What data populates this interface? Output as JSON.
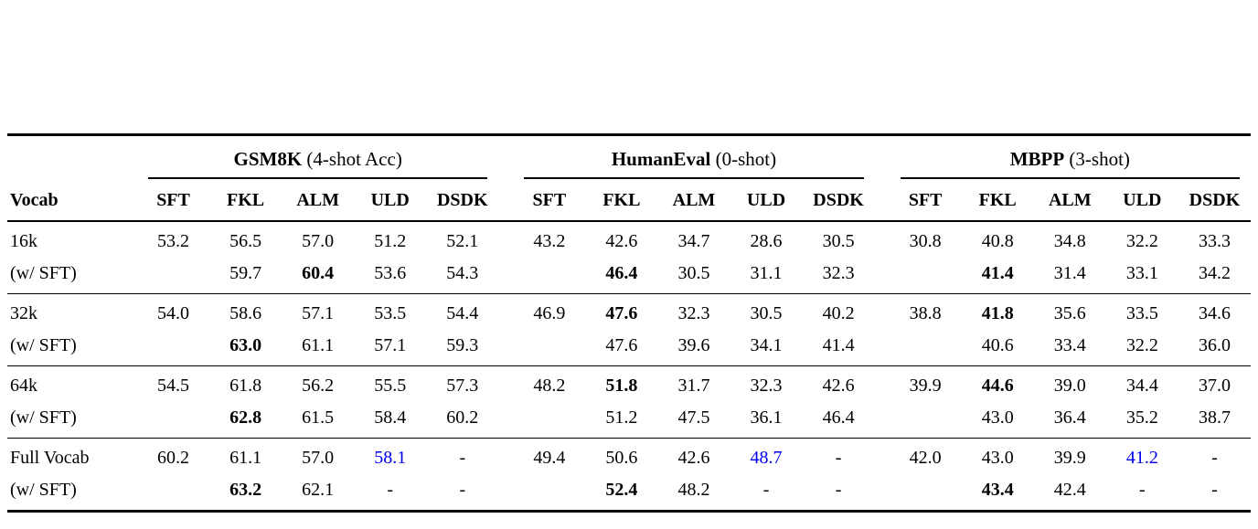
{
  "page": {
    "background": "#ffffff"
  },
  "colors": {
    "text": "#000000",
    "rule": "#000000",
    "highlight": "#0000EE"
  },
  "table": {
    "vocab_header": "Vocab",
    "groups": [
      {
        "name": "GSM8K",
        "detail": " (4-shot Acc)"
      },
      {
        "name": "HumanEval",
        "detail": " (0-shot)"
      },
      {
        "name": "MBPP",
        "detail": " (3-shot)"
      }
    ],
    "method_headers": [
      "SFT",
      "FKL",
      "ALM",
      "ULD",
      "DSDK"
    ],
    "row_groups": [
      {
        "rows": [
          {
            "label": "16k",
            "cells": [
              "53.2",
              "56.5",
              "57.0",
              "51.2",
              "52.1",
              "43.2",
              "42.6",
              "34.7",
              "28.6",
              "30.5",
              "30.8",
              "40.8",
              "34.8",
              "32.2",
              "33.3"
            ],
            "bold": [],
            "blue": []
          },
          {
            "label": "(w/ SFT)",
            "cells": [
              "",
              "59.7",
              "60.4",
              "53.6",
              "54.3",
              "",
              "46.4",
              "30.5",
              "31.1",
              "32.3",
              "",
              "41.4",
              "31.4",
              "33.1",
              "34.2"
            ],
            "bold": [
              2,
              6,
              11
            ],
            "blue": []
          }
        ]
      },
      {
        "rows": [
          {
            "label": "32k",
            "cells": [
              "54.0",
              "58.6",
              "57.1",
              "53.5",
              "54.4",
              "46.9",
              "47.6",
              "32.3",
              "30.5",
              "40.2",
              "38.8",
              "41.8",
              "35.6",
              "33.5",
              "34.6"
            ],
            "bold": [
              6,
              11
            ],
            "blue": []
          },
          {
            "label": "(w/ SFT)",
            "cells": [
              "",
              "63.0",
              "61.1",
              "57.1",
              "59.3",
              "",
              "47.6",
              "39.6",
              "34.1",
              "41.4",
              "",
              "40.6",
              "33.4",
              "32.2",
              "36.0"
            ],
            "bold": [
              1
            ],
            "blue": []
          }
        ]
      },
      {
        "rows": [
          {
            "label": "64k",
            "cells": [
              "54.5",
              "61.8",
              "56.2",
              "55.5",
              "57.3",
              "48.2",
              "51.8",
              "31.7",
              "32.3",
              "42.6",
              "39.9",
              "44.6",
              "39.0",
              "34.4",
              "37.0"
            ],
            "bold": [
              6,
              11
            ],
            "blue": []
          },
          {
            "label": "(w/ SFT)",
            "cells": [
              "",
              "62.8",
              "61.5",
              "58.4",
              "60.2",
              "",
              "51.2",
              "47.5",
              "36.1",
              "46.4",
              "",
              "43.0",
              "36.4",
              "35.2",
              "38.7"
            ],
            "bold": [
              1
            ],
            "blue": []
          }
        ]
      },
      {
        "rows": [
          {
            "label": "Full Vocab",
            "cells": [
              "60.2",
              "61.1",
              "57.0",
              "58.1",
              "-",
              "49.4",
              "50.6",
              "42.6",
              "48.7",
              "-",
              "42.0",
              "43.0",
              "39.9",
              "41.2",
              "-"
            ],
            "bold": [],
            "blue": [
              3,
              8,
              13
            ]
          },
          {
            "label": "(w/ SFT)",
            "cells": [
              "",
              "63.2",
              "62.1",
              "-",
              "-",
              "",
              "52.4",
              "48.2",
              "-",
              "-",
              "",
              "43.4",
              "42.4",
              "-",
              "-"
            ],
            "bold": [
              1,
              6,
              11
            ],
            "blue": []
          }
        ]
      }
    ]
  }
}
